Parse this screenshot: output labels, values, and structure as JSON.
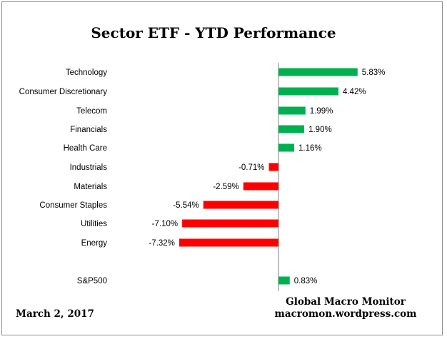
{
  "chart_data": {
    "type": "bar",
    "orientation": "horizontal",
    "title": "Sector ETF - YTD  Performance",
    "xlabel": "",
    "ylabel": "",
    "categories": [
      "Technology",
      "Consumer Discretionary",
      "Telecom",
      "Financials",
      "Health Care",
      "Industrials",
      "Materials",
      "Consumer Staples",
      "Utilities",
      "Energy",
      "S&P500"
    ],
    "values": [
      5.83,
      4.42,
      1.99,
      1.9,
      1.16,
      -0.71,
      -2.59,
      -5.54,
      -7.1,
      -7.32,
      0.83
    ],
    "value_labels": [
      "5.83%",
      "4.42%",
      "1.99%",
      "1.90%",
      "1.16%",
      "-0.71%",
      "-2.59%",
      "-5.54%",
      "-7.10%",
      "-7.32%",
      "0.83%"
    ],
    "positive_color": "#00b050",
    "negative_color": "#ff0000",
    "grid": false,
    "legend": "none"
  },
  "footer": {
    "date": "March 2,  2017",
    "source_name": "Global Macro Monitor",
    "source_url": "macromon.wordpress.com"
  }
}
